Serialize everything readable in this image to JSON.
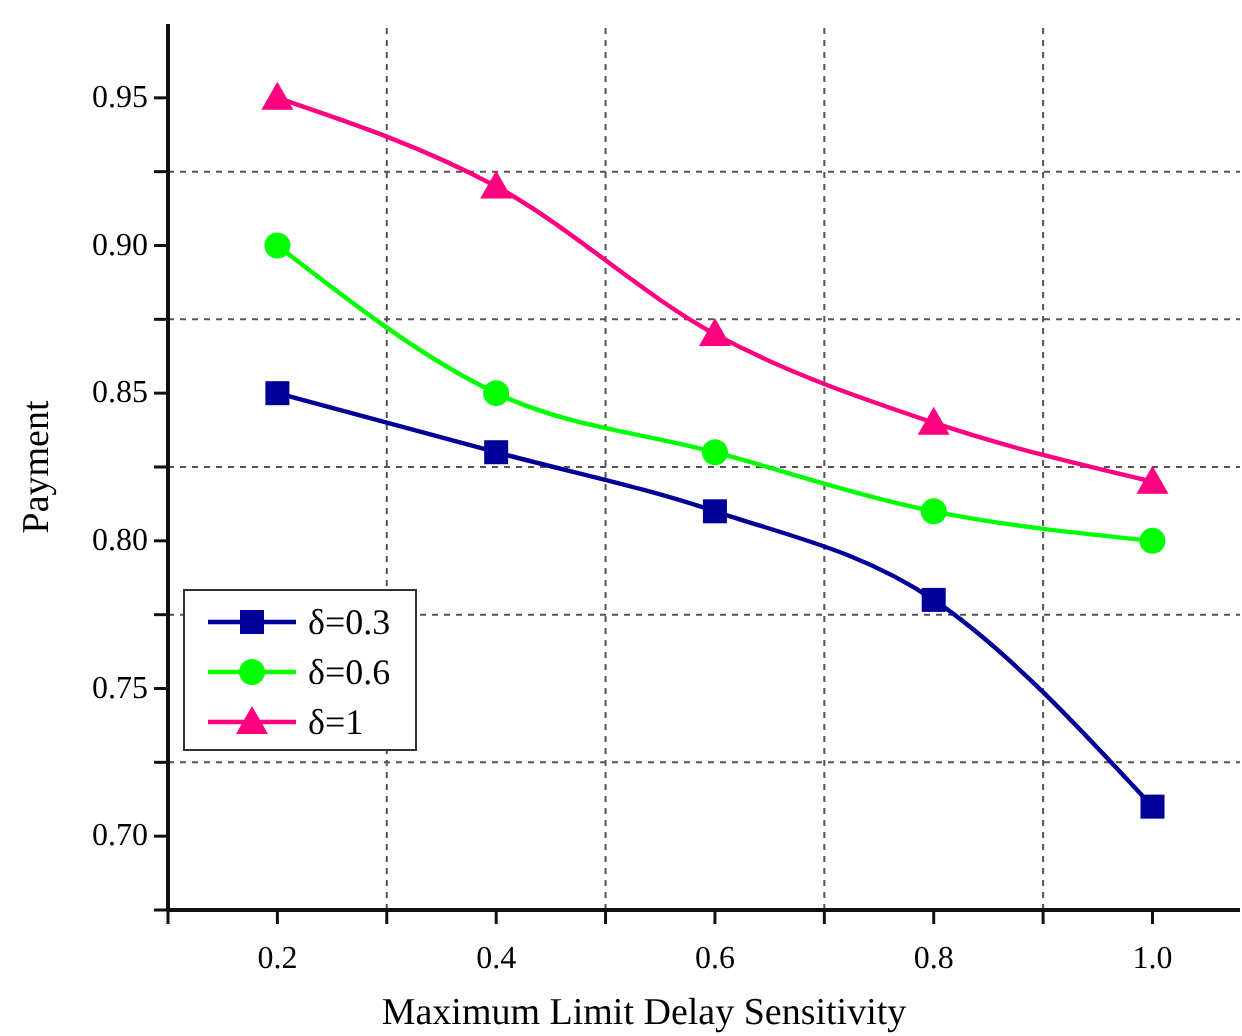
{
  "chart_data": {
    "type": "line",
    "xlabel": "Maximum Limit Delay Sensitivity",
    "ylabel": "Payment",
    "x": [
      0.2,
      0.4,
      0.6,
      0.8,
      1.0
    ],
    "series": [
      {
        "name": "δ=0.3",
        "color": "#000099",
        "marker": "square",
        "values": [
          0.85,
          0.83,
          0.81,
          0.78,
          0.71
        ]
      },
      {
        "name": "δ=0.6",
        "color": "#00ff00",
        "marker": "circle",
        "values": [
          0.9,
          0.85,
          0.83,
          0.81,
          0.8
        ]
      },
      {
        "name": "δ=1",
        "color": "#ff0080",
        "marker": "triangle",
        "values": [
          0.95,
          0.92,
          0.87,
          0.84,
          0.82
        ]
      }
    ],
    "xlim": [
      0.1,
      1.08
    ],
    "xticks": [
      {
        "value": 0.1,
        "label": null
      },
      {
        "value": 0.2,
        "label": "0.2"
      },
      {
        "value": 0.3,
        "label": null
      },
      {
        "value": 0.4,
        "label": "0.4"
      },
      {
        "value": 0.5,
        "label": null
      },
      {
        "value": 0.6,
        "label": "0.6"
      },
      {
        "value": 0.7,
        "label": null
      },
      {
        "value": 0.8,
        "label": "0.8"
      },
      {
        "value": 0.9,
        "label": null
      },
      {
        "value": 1.0,
        "label": "1.0"
      }
    ],
    "ylim": [
      0.675,
      0.975
    ],
    "yticks": [
      {
        "value": 0.675,
        "label": null
      },
      {
        "value": 0.7,
        "label": "0.70"
      },
      {
        "value": 0.725,
        "label": null
      },
      {
        "value": 0.75,
        "label": "0.75"
      },
      {
        "value": 0.775,
        "label": null
      },
      {
        "value": 0.8,
        "label": "0.80"
      },
      {
        "value": 0.825,
        "label": null
      },
      {
        "value": 0.85,
        "label": "0.85"
      },
      {
        "value": 0.875,
        "label": null
      },
      {
        "value": 0.9,
        "label": "0.90"
      },
      {
        "value": 0.925,
        "label": null
      },
      {
        "value": 0.95,
        "label": "0.95"
      }
    ],
    "grid": true,
    "legend": "left",
    "line_style": "solid"
  }
}
